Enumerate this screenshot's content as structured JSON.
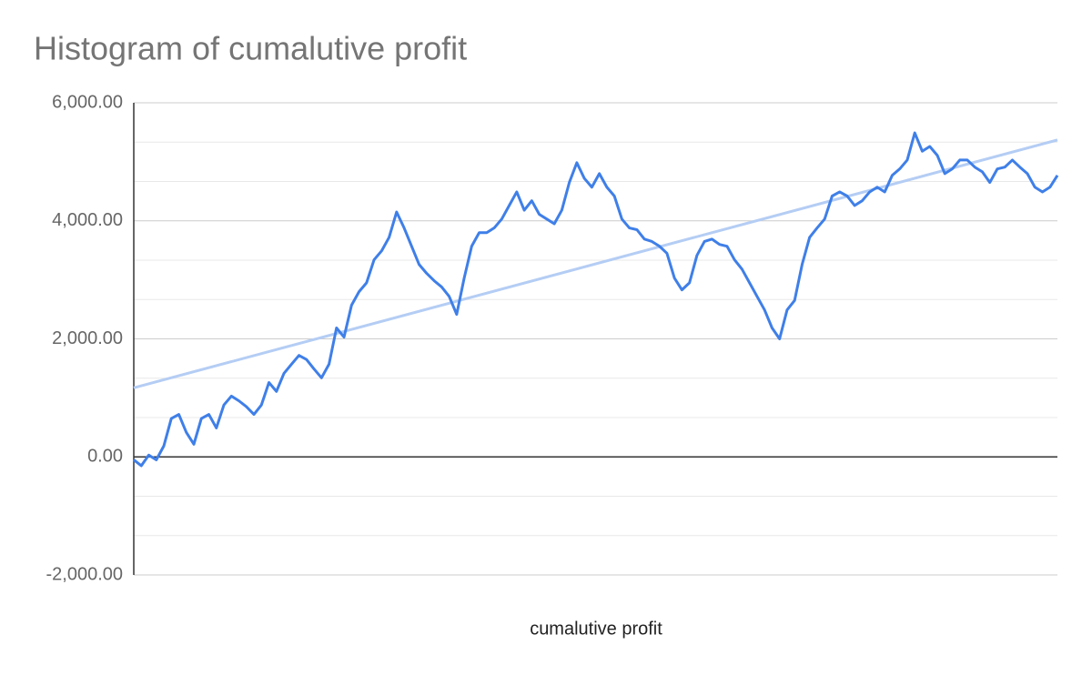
{
  "chart_data": {
    "type": "line",
    "title": "Histogram of cumalutive profit",
    "x_label": "cumalutive profit",
    "ylim": [
      -2000,
      6000
    ],
    "yticks": [
      {
        "value": -2000,
        "label": "-2,000.00"
      },
      {
        "value": 0,
        "label": "0.00"
      },
      {
        "value": 2000,
        "label": "2,000.00"
      },
      {
        "value": 4000,
        "label": "4,000.00"
      },
      {
        "value": 6000,
        "label": "6,000.00"
      }
    ],
    "grid": true,
    "minor_grid_divisions": 3,
    "series": [
      {
        "name": "cumalutive profit",
        "color": "#3f7fe8",
        "values": [
          -50,
          -150,
          30,
          -50,
          185,
          650,
          720,
          415,
          215,
          650,
          720,
          490,
          880,
          1030,
          950,
          850,
          720,
          880,
          1260,
          1110,
          1415,
          1570,
          1720,
          1650,
          1490,
          1340,
          1570,
          2185,
          2030,
          2570,
          2800,
          2950,
          3340,
          3490,
          3720,
          4150,
          3880,
          3570,
          3260,
          3110,
          2985,
          2880,
          2720,
          2415,
          3030,
          3570,
          3800,
          3800,
          3880,
          4030,
          4260,
          4490,
          4180,
          4340,
          4110,
          4030,
          3950,
          4180,
          4650,
          4985,
          4720,
          4570,
          4800,
          4570,
          4420,
          4030,
          3880,
          3850,
          3690,
          3650,
          3570,
          3450,
          3030,
          2830,
          2950,
          3415,
          3650,
          3690,
          3600,
          3570,
          3340,
          3180,
          2950,
          2720,
          2490,
          2185,
          2000,
          2490,
          2650,
          3260,
          3720,
          3880,
          4030,
          4420,
          4490,
          4420,
          4260,
          4340,
          4490,
          4570,
          4490,
          4770,
          4880,
          5030,
          5490,
          5180,
          5260,
          5110,
          4800,
          4880,
          5030,
          5030,
          4910,
          4830,
          4650,
          4880,
          4910,
          5030,
          4910,
          4800,
          4570,
          4490,
          4570,
          4770
        ]
      }
    ],
    "trendline": {
      "color": "#b4cdf4",
      "values": [
        1170,
        5370
      ]
    }
  }
}
